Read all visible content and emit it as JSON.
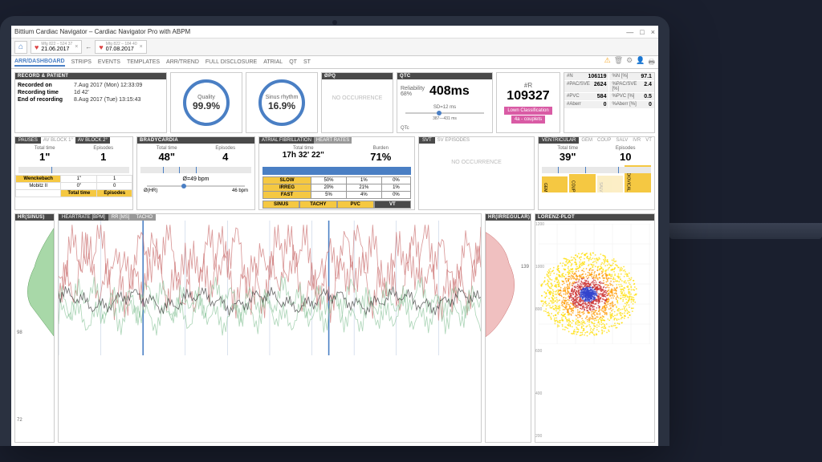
{
  "app": {
    "title": "Bittium Cardiac Navigator – Cardiac Navigator Pro with ABPM",
    "date1": "21.06.2017",
    "date1_sub": "Mfg 822 – 524 37",
    "date2": "07.08.2017",
    "date2_sub": "Mfg 822 – 184 40"
  },
  "tabs": [
    "ARR/DASHBOARD",
    "STRIPS",
    "EVENTS",
    "TEMPLATES",
    "ARR/TREND",
    "FULL DISCLOSURE",
    "ATRIAL",
    "QT",
    "ST"
  ],
  "record": {
    "header": "RECORD & PATIENT",
    "rows": [
      {
        "label": "Recorded on",
        "val": "7.Aug 2017 (Mon) 12:33:09"
      },
      {
        "label": "Recording time",
        "val": "1d 42'"
      },
      {
        "label": "End of recording",
        "val": "8.Aug 2017 (Tue) 13:15:43"
      }
    ]
  },
  "quality": {
    "label": "Quality",
    "val": "99.9%"
  },
  "sinus": {
    "label": "Sinus rhythm",
    "val": "16.9%"
  },
  "opq": {
    "header": "ØPQ",
    "text": "NO OCCURRENCE"
  },
  "qtc": {
    "header": "QTC",
    "rel_label": "Reliability",
    "rel_val": "68%",
    "val": "408ms",
    "slider_label": "SD=12 ms",
    "slider_range": "387—431 ms",
    "qtc_label": "QTc"
  },
  "r": {
    "label": "#R",
    "val": "109327",
    "btn1": "Lown Classification",
    "btn2": "4a - couplets"
  },
  "stats": [
    {
      "label": "#N",
      "val": "106119"
    },
    {
      "label": "%N [%]",
      "val": "97.1"
    },
    {
      "label": "#PAC/SVE",
      "val": "2624"
    },
    {
      "label": "%PAC/SVE [%]",
      "val": "2.4"
    },
    {
      "label": "#PVC",
      "val": "584"
    },
    {
      "label": "%PVC [%]",
      "val": "0.5"
    },
    {
      "label": "#Aberr",
      "val": "0"
    },
    {
      "label": "%Aberr [%]",
      "val": "0"
    }
  ],
  "pauses": {
    "header": "PAUSES",
    "subtabs": [
      "AV BLOCK 1°",
      "AV BLOCK 2°"
    ],
    "total_label": "Total time",
    "total_val": "1\"",
    "ep_label": "Episodes",
    "ep_val": "1",
    "block_rows": [
      {
        "name": "Wenckebach",
        "t": "1\"",
        "e": "1",
        "hl": true
      },
      {
        "name": "Mobitz II",
        "t": "0\"",
        "e": "0",
        "hl": false
      }
    ],
    "col1": "Total time",
    "col2": "Episodes"
  },
  "brady": {
    "header": "BRADYCARDIA",
    "total_label": "Total time",
    "total_val": "48\"",
    "ep_label": "Episodes",
    "ep_val": "4",
    "avg_label": "Ø=49 bpm",
    "hr_label": "Ø(HR)",
    "hr_val": "46 bpm"
  },
  "afib": {
    "header": "ATRIAL FIBRILLATION",
    "tabs": [
      "HEART RATES"
    ],
    "total_label": "Total time",
    "total_val": "17h 32' 22\"",
    "burden_label": "Burden",
    "burden_val": "71%",
    "rate_rows": [
      {
        "name": "SLOW",
        "v1": "50%",
        "v2": "1%",
        "v3": "0%"
      },
      {
        "name": "IRREG",
        "v1": "20%",
        "v2": "21%",
        "v3": "1%"
      },
      {
        "name": "FAST",
        "v1": "5%",
        "v2": "4%",
        "v3": "0%"
      }
    ],
    "bottom_tabs": [
      "SINUS",
      "TACHY",
      "PVC",
      "VT"
    ]
  },
  "svt": {
    "header": "SVT",
    "subtab": "SV EPISODES",
    "text": "NO OCCURRENCE"
  },
  "ventr": {
    "header": "VENTRICULAR",
    "subtabs": [
      "GEM",
      "COUP",
      "SALV",
      "IVR",
      "VT"
    ],
    "total_label": "Total time",
    "total_val": "39\"",
    "ep_label": "Episodes",
    "ep_val": "10",
    "bars": [
      "GEM",
      "COUP",
      "SALV",
      "IDIOVICAL"
    ]
  },
  "charts": {
    "sinus_header": "HR(SINUS)",
    "main_tabs": [
      "HEARTRATE [BPM]",
      "RR [MS]",
      "TACHO"
    ],
    "irreg_header": "HR(IRREGULAR)",
    "lorenz_header": "LORENZ-PLOT",
    "sinus_ticks": [
      "98",
      "72"
    ],
    "irreg_tick": "139",
    "lorenz_ticks": [
      "1200",
      "1000",
      "800",
      "600",
      "400",
      "200"
    ],
    "hr_color": "#c96b6b",
    "hr_color2": "#8bc49b",
    "hr_color3": "#333",
    "lorenz_colors": [
      "#3344cc",
      "#ff9900",
      "#ffdd00",
      "#cc3333"
    ]
  }
}
